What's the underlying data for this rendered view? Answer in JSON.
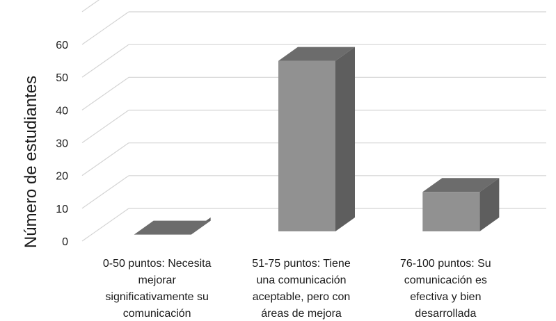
{
  "chart_data": {
    "type": "bar",
    "style": "3d-column",
    "categories": [
      [
        "0-50 puntos: Necesita",
        "mejorar",
        "significativamente su",
        "comunicación"
      ],
      [
        "51-75 puntos: Tiene",
        "una comunicación",
        "aceptable, pero con",
        "áreas de mejora"
      ],
      [
        "76-100 puntos: Su",
        "comunicación es",
        "efectiva y bien",
        "desarrollada"
      ]
    ],
    "values": [
      2,
      55,
      15
    ],
    "title": "",
    "xlabel": "",
    "ylabel": "Número de estudiantes",
    "ylim": [
      0,
      70
    ],
    "yticks": [
      0,
      10,
      20,
      30,
      40,
      50,
      60
    ],
    "grid": true,
    "legend": "none",
    "colors": {
      "bar_front": "#919191",
      "bar_side": "#5e5e5e",
      "bar_top": "#6c6c6c",
      "grid": "#d4d4d4",
      "text": "#1a1a1a"
    }
  }
}
